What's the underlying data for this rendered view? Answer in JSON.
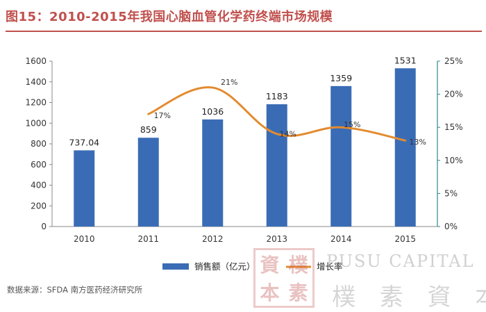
{
  "title": "图15：2010-2015年我国心脑血管化学药终端市场规模",
  "source": "数据来源：SFDA 南方医药经济研究所",
  "watermark": {
    "seal_chars": [
      "資",
      "樸",
      "本",
      "素"
    ],
    "english": "PUSU CAPITAL",
    "chinese": "樸 素 資 本"
  },
  "colors": {
    "bar": "#3a6cb5",
    "line": "#e38b2f",
    "accent": "#c0504d",
    "axis": "#2c8a8a"
  },
  "chart_data": {
    "type": "bar",
    "categories": [
      "2010",
      "2011",
      "2012",
      "2013",
      "2014",
      "2015"
    ],
    "series": [
      {
        "name": "销售额（亿元）",
        "type": "bar",
        "axis": "left",
        "values": [
          737.04,
          859,
          1036,
          1183,
          1359,
          1531
        ],
        "labels": [
          "737.04",
          "859",
          "1036",
          "1183",
          "1359",
          "1531"
        ]
      },
      {
        "name": "增长率",
        "type": "line",
        "axis": "right",
        "values": [
          null,
          17,
          21,
          14,
          15,
          13
        ],
        "labels": [
          "",
          "17%",
          "21%",
          "14%",
          "15%",
          "13%"
        ]
      }
    ],
    "yaxis_left": {
      "ylim": [
        0,
        1600
      ],
      "ticks": [
        "0",
        "200",
        "400",
        "600",
        "800",
        "1000",
        "1200",
        "1400",
        "1600"
      ]
    },
    "yaxis_right": {
      "ylim": [
        0,
        25
      ],
      "ticks": [
        "0%",
        "5%",
        "10%",
        "15%",
        "20%",
        "25%"
      ]
    },
    "legend": {
      "placement": "bottom"
    },
    "grid": false
  }
}
